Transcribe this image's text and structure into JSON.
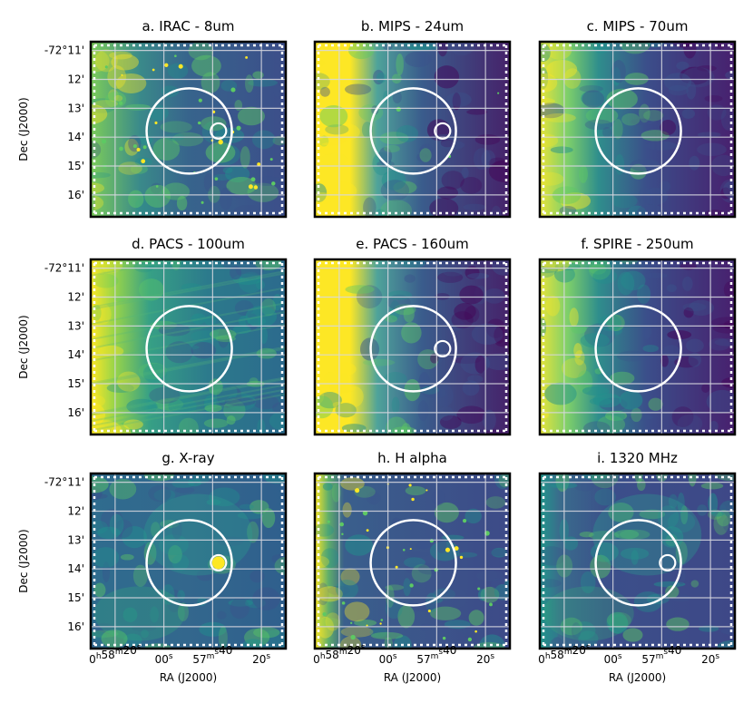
{
  "figure": {
    "panels": [
      {
        "title": "a. IRAC - 8um",
        "bright_side": "left-patchy",
        "small_circle": true,
        "small_circle_filled": false,
        "point_sources": "many"
      },
      {
        "title": "b. MIPS - 24um",
        "bright_side": "left-strong",
        "small_circle": true,
        "small_circle_filled": false,
        "point_sources": "few"
      },
      {
        "title": "c. MIPS - 70um",
        "bright_side": "left-smooth",
        "small_circle": false,
        "small_circle_filled": false,
        "point_sources": "none"
      },
      {
        "title": "d. PACS - 100um",
        "bright_side": "left-streaky",
        "small_circle": false,
        "small_circle_filled": false,
        "point_sources": "none"
      },
      {
        "title": "e. PACS - 160um",
        "bright_side": "left-strong",
        "small_circle": true,
        "small_circle_filled": false,
        "point_sources": "none"
      },
      {
        "title": "f. SPIRE - 250um",
        "bright_side": "left-smooth",
        "small_circle": false,
        "small_circle_filled": false,
        "point_sources": "none"
      },
      {
        "title": "g. X-ray",
        "bright_side": "none",
        "small_circle": true,
        "small_circle_filled": true,
        "point_sources": "none"
      },
      {
        "title": "h. H alpha",
        "bright_side": "left-edge",
        "small_circle": false,
        "small_circle_filled": false,
        "point_sources": "many"
      },
      {
        "title": "i. 1320 MHz",
        "bright_side": "faint-left",
        "small_circle": true,
        "small_circle_filled": false,
        "point_sources": "none"
      }
    ],
    "dec_ticks": [
      "-72°11'",
      "12'",
      "13'",
      "14'",
      "15'",
      "16'"
    ],
    "dec_label": "Dec (J2000)",
    "ra_ticks": [
      {
        "main": "0",
        "sup1": "h",
        "mid": "58",
        "sup2": "m",
        "tail": "20",
        "sup3": "s"
      },
      {
        "main": "00",
        "sup1": "s"
      },
      {
        "main": "57",
        "sup1": "m",
        "tail": "40",
        "sup2": "s"
      },
      {
        "main": "20",
        "sup1": "s"
      }
    ],
    "ra_label": "RA (J2000)",
    "colors": {
      "colormap": [
        "#440154",
        "#3b528b",
        "#21908d",
        "#5dc963",
        "#fde725"
      ],
      "grid": "#d8d8e0",
      "circle": "#ffffff",
      "frame": "#000000"
    }
  }
}
